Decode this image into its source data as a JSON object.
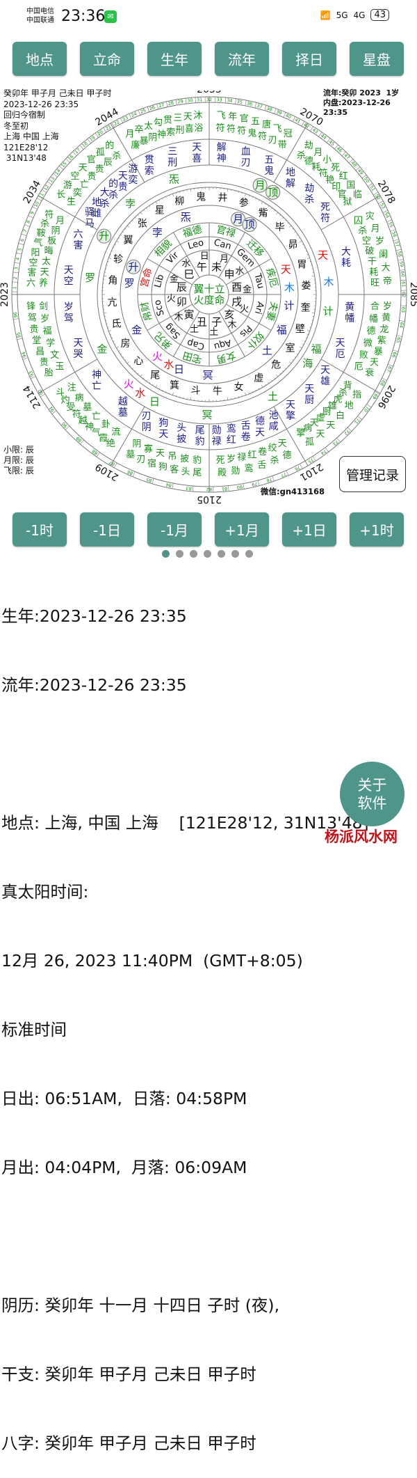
{
  "status_bar": {
    "carrier1": "中国电信",
    "carrier2": "中国联通",
    "time": "23:36",
    "network1": "5G",
    "network2": "4G",
    "battery": "43"
  },
  "top_buttons": [
    "地点",
    "立命",
    "生年",
    "流年",
    "择日",
    "星盘"
  ],
  "info_left": [
    "癸卯年 甲子月 己未日 甲子时",
    "2023-12-26 23:35",
    "回归今宿制",
    "冬至初",
    "上海  中国 上海",
    "121E28'12",
    " 31N13'48"
  ],
  "info_right": [
    "流年:癸卯 2023  1岁",
    "内盘:2023-12-26 23:35"
  ],
  "limits": [
    "小限: 辰",
    "月限: 辰",
    "飞限: 辰"
  ],
  "manage_button": "管理记录",
  "wechat_id": "微信:gn413168",
  "colors": {
    "accent": "#4f958a",
    "green": "#1a8c1a",
    "navy": "#1c1c8c",
    "red": "#e01010",
    "brand": "#c0141c"
  },
  "chart": {
    "year_labels": [
      "2055",
      "2070",
      "2078",
      "2085",
      "2096",
      "2101",
      "2105",
      "2109",
      "2114",
      "2023",
      "2034",
      "2044"
    ],
    "age_ticks": {
      "start": 1,
      "end": 96
    },
    "center": [
      "翼十立",
      "火度命"
    ],
    "sectors": [
      {
        "branch": "未",
        "planet": "月",
        "sign": "Can",
        "palace": "官禄",
        "outer1": "飞年官五唐飞冠",
        "outer2": "符符符鬼符刃带",
        "middle": [
          "解神",
          "血刃",
          "五鬼"
        ]
      },
      {
        "branch": "申",
        "planet": "水",
        "sign": "Gem",
        "palace": "迁移",
        "outer1": "劫月小死红国临",
        "outer2": "杀德耗符艳印官狱",
        "middle": [
          "地解",
          "劫杀",
          "死符"
        ]
      },
      {
        "branch": "酉",
        "planet": "金",
        "sign": "Tau",
        "palace": "疾厄",
        "outer1": "灾月岁阑大帝",
        "outer2": "囚杀空破干耗旺",
        "middle": [
          "大耗"
        ]
      },
      {
        "branch": "戌",
        "planet": "火",
        "sign": "Ari",
        "palace": "夫妻",
        "outer1": "岁黄龙紫暴天衰",
        "outer2": "合幡德微败厄",
        "middle": [
          "黄幡",
          "天厄"
        ]
      },
      {
        "branch": "亥",
        "planet": "木",
        "sign": "Pis",
        "palace": "奴仆",
        "outer1": "指地白天天孤",
        "outer2": "背杀虎雄厨虚天病擎",
        "middle": [
          "天雄",
          "天厨",
          "天擎"
        ]
      },
      {
        "branch": "子",
        "planet": "土",
        "sign": "Aqu",
        "palace": "女男",
        "outer1": "德杀舌鸾勋殿",
        "outer2": "天绞卷红禄岁死",
        "middle": [
          "池咸",
          "德天",
          "舌卷",
          "鸾红",
          "勋禄"
        ]
      },
      {
        "branch": "丑",
        "planet": "土",
        "sign": "Cap",
        "palace": "宅田",
        "outer1": "尾头客狗宿刃墓",
        "outer2": "豹披吊天寡阴",
        "middle": [
          "尾豹",
          "头披",
          "狗天",
          "刃阴"
        ]
      },
      {
        "branch": "寅",
        "planet": "木",
        "sign": "Sag",
        "palace": "弟兄",
        "outer1": "绝霞气神越符受灼斗",
        "outer2": "流卦亡墓病注",
        "middle": [
          "越墓",
          "神亡"
        ]
      },
      {
        "branch": "卯",
        "planet": "火",
        "sign": "Sco",
        "palace": "帛财",
        "outer1": "胎贵昌堂贵驾锋",
        "outer2": "玉文学福岁剑",
        "middle": [
          "天哭",
          "岁驾"
        ]
      },
      {
        "branch": "辰",
        "planet": "金",
        "sign": "Lib",
        "palace": "宫命",
        "outer1": "六害空阳气鞍杀符",
        "outer2": "养天太晦板阴月",
        "middle": [
          "天空",
          "六害"
        ]
      },
      {
        "branch": "巳",
        "planet": "水",
        "sign": "Vir",
        "palace": "相貌",
        "outer1": "长游空天官孤的",
        "outer2": "生奕亡贵贵辰杀",
        "middle": [
          "驿马",
          "地雌",
          "大杀",
          "的杀",
          "天贵",
          "游奕"
        ]
      },
      {
        "branch": "午",
        "planet": "日",
        "sign": "Leo",
        "palace": "福德",
        "outer1": "月卒太勾贯三天沐",
        "outer2": "廉暴阴神索刑喜浴",
        "middle": [
          "贯索",
          "三刑",
          "天喜"
        ]
      }
    ],
    "mansions": [
      "井",
      "参",
      "觜",
      "毕",
      "昴",
      "胃",
      "娄",
      "奎",
      "壁",
      "室",
      "危",
      "虚",
      "女",
      "牛",
      "斗",
      "箕",
      "尾",
      "心",
      "房",
      "氐",
      "亢",
      "角",
      "轸",
      "翼",
      "张",
      "星",
      "柳",
      "鬼"
    ],
    "inner_stars": [
      {
        "label": "月",
        "color": "#1c1c8c",
        "circled": true
      },
      {
        "label": "顶",
        "color": "#1c1c8c",
        "circled": true
      },
      {
        "label": "天",
        "color": "#e01010"
      },
      {
        "label": "木",
        "color": "#1a7ae0"
      },
      {
        "label": "计",
        "color": "#1c1c8c"
      },
      {
        "label": "福",
        "color": "#1c1c8c"
      },
      {
        "label": "土",
        "color": "#1c1c8c"
      },
      {
        "label": "冥",
        "color": "#1c1c8c"
      },
      {
        "label": "日",
        "color": "#1c1c8c"
      },
      {
        "label": "水",
        "color": "#e01010"
      },
      {
        "label": "火",
        "color": "#e010e0"
      },
      {
        "label": "金",
        "color": "#1c1c8c"
      },
      {
        "label": "罗",
        "color": "#1c1c8c"
      },
      {
        "label": "升",
        "color": "#1c1c8c",
        "circled": true
      },
      {
        "label": "孛",
        "color": "#1c1c8c"
      },
      {
        "label": "炁",
        "color": "#1c1c8c"
      }
    ],
    "outer_stars": [
      {
        "label": "月",
        "color": "#1a8c1a",
        "circled": true
      },
      {
        "label": "顶",
        "color": "#1a8c1a",
        "circled": true
      },
      {
        "label": "天",
        "color": "#e01010"
      },
      {
        "label": "木",
        "color": "#1a7ae0"
      },
      {
        "label": "计",
        "color": "#1a8c1a"
      },
      {
        "label": "福",
        "color": "#1a8c1a"
      },
      {
        "label": "海",
        "color": "#1a8c1a"
      },
      {
        "label": "土",
        "color": "#1a8c1a"
      },
      {
        "label": "冥",
        "color": "#1a8c1a"
      },
      {
        "label": "日",
        "color": "#1a8c1a"
      },
      {
        "label": "水",
        "color": "#e01010"
      },
      {
        "label": "火",
        "color": "#e010e0"
      },
      {
        "label": "金",
        "color": "#1a8c1a"
      },
      {
        "label": "罗",
        "color": "#1a8c1a"
      },
      {
        "label": "升",
        "color": "#1a8c1a",
        "circled": true
      },
      {
        "label": "孛",
        "color": "#1a8c1a"
      },
      {
        "label": "炁",
        "color": "#1a8c1a"
      }
    ]
  },
  "step_buttons": [
    "-1时",
    "-1日",
    "-1月",
    "+1月",
    "+1日",
    "+1时"
  ],
  "pager": {
    "count": 7,
    "active": 0
  },
  "details": [
    "生年:2023-12-26 23:35",
    "流年:2023-12-26 23:35",
    "",
    "地点: 上海, 中国 上海    [121E28'12, 31N13'48]",
    "真太阳时间:",
    "12月 26, 2023 11:40PM  (GMT+8:05)",
    "标准时间",
    "日出: 06:51AM,  日落: 04:58PM",
    "月出: 04:04PM,  月落: 06:09AM",
    "",
    "阴历: 癸卯年 十一月 十四日 子时 (夜),",
    "干支: 癸卯年 甲子月 己未日 甲子时",
    "八字: 癸卯年 甲子月 己未日 甲子时"
  ],
  "about_button": [
    "关于",
    "软件"
  ],
  "brand": "杨派风水网"
}
